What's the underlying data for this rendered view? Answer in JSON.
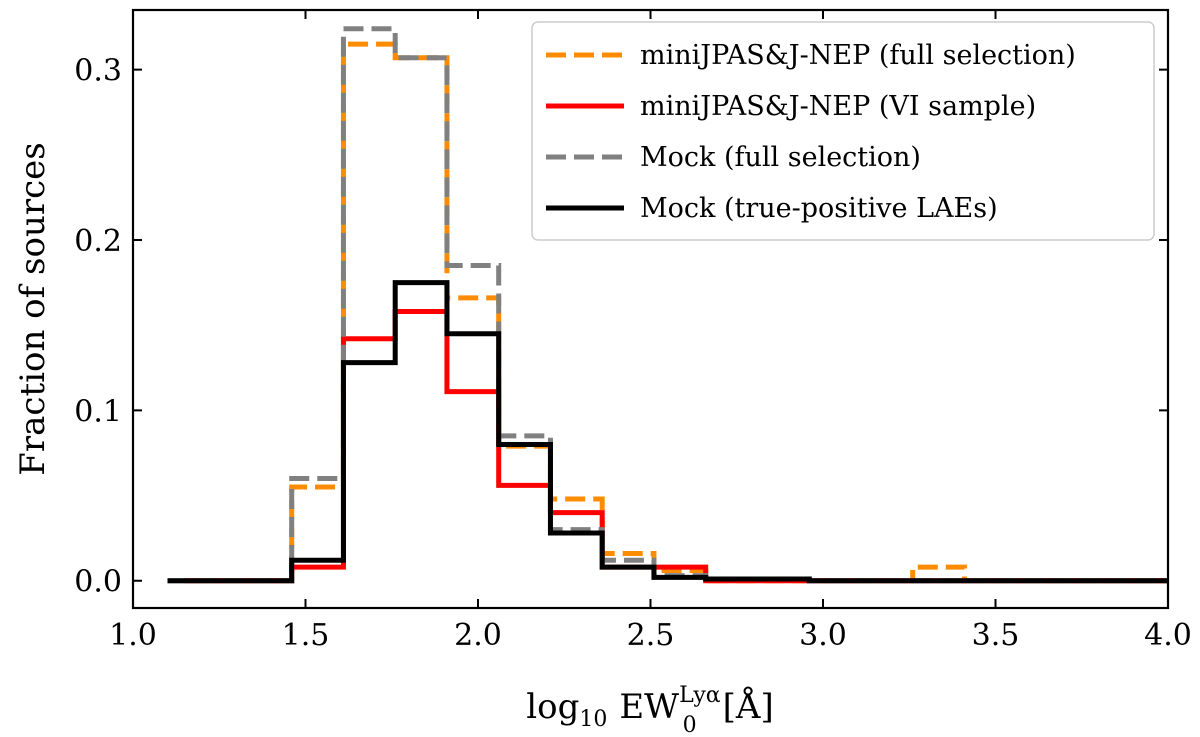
{
  "chart_data": {
    "type": "line",
    "drawstyle": "steps-post",
    "xlabel": {
      "base": "log",
      "base_sub": "10",
      "quantity": "EW",
      "quantity_sub": "0",
      "quantity_sup": "Lyα",
      "unit": "[Å]"
    },
    "ylabel": "Fraction of sources",
    "xlim": [
      1.0,
      4.0
    ],
    "ylim": [
      -0.016,
      0.335
    ],
    "xticks": [
      1.0,
      1.5,
      2.0,
      2.5,
      3.0,
      3.5,
      4.0
    ],
    "xtick_labels": [
      "1.0",
      "1.5",
      "2.0",
      "2.5",
      "3.0",
      "3.5",
      "4.0"
    ],
    "yticks": [
      0.0,
      0.1,
      0.2,
      0.3
    ],
    "ytick_labels": [
      "0.0",
      "0.1",
      "0.2",
      "0.3"
    ],
    "grid": false,
    "legend_position": "top-right",
    "series": [
      {
        "name": "miniJPAS&J-NEP (full selection)",
        "color": "#ff8c00",
        "dash": "dashed",
        "x": [
          1.15,
          1.46,
          1.61,
          1.76,
          1.91,
          2.06,
          2.21,
          2.36,
          2.51,
          2.66,
          2.96,
          3.26,
          3.41,
          4.0
        ],
        "y": [
          0.0,
          0.055,
          0.315,
          0.307,
          0.166,
          0.079,
          0.048,
          0.016,
          0.006,
          0.0,
          0.0,
          0.008,
          0.0,
          0.0
        ]
      },
      {
        "name": "miniJPAS&J-NEP (VI sample)",
        "color": "#ff0000",
        "dash": "solid",
        "x": [
          1.15,
          1.46,
          1.61,
          1.76,
          1.91,
          2.06,
          2.21,
          2.36,
          2.66,
          4.0
        ],
        "y": [
          0.0,
          0.008,
          0.142,
          0.158,
          0.111,
          0.056,
          0.04,
          0.008,
          0.0,
          0.0
        ]
      },
      {
        "name": "Mock (full selection)",
        "color": "#808080",
        "dash": "dashed",
        "x": [
          1.1,
          1.46,
          1.61,
          1.76,
          1.91,
          2.06,
          2.21,
          2.36,
          2.51,
          2.66,
          2.96,
          4.0
        ],
        "y": [
          0.0,
          0.06,
          0.324,
          0.307,
          0.185,
          0.085,
          0.03,
          0.012,
          0.003,
          0.001,
          0.0,
          0.0
        ]
      },
      {
        "name": "Mock (true-positive LAEs)",
        "color": "#000000",
        "dash": "solid",
        "x": [
          1.1,
          1.46,
          1.61,
          1.76,
          1.91,
          2.06,
          2.21,
          2.36,
          2.51,
          2.66,
          2.96,
          4.0
        ],
        "y": [
          0.0,
          0.012,
          0.128,
          0.175,
          0.145,
          0.08,
          0.028,
          0.008,
          0.002,
          0.001,
          0.0,
          0.0
        ]
      }
    ]
  }
}
